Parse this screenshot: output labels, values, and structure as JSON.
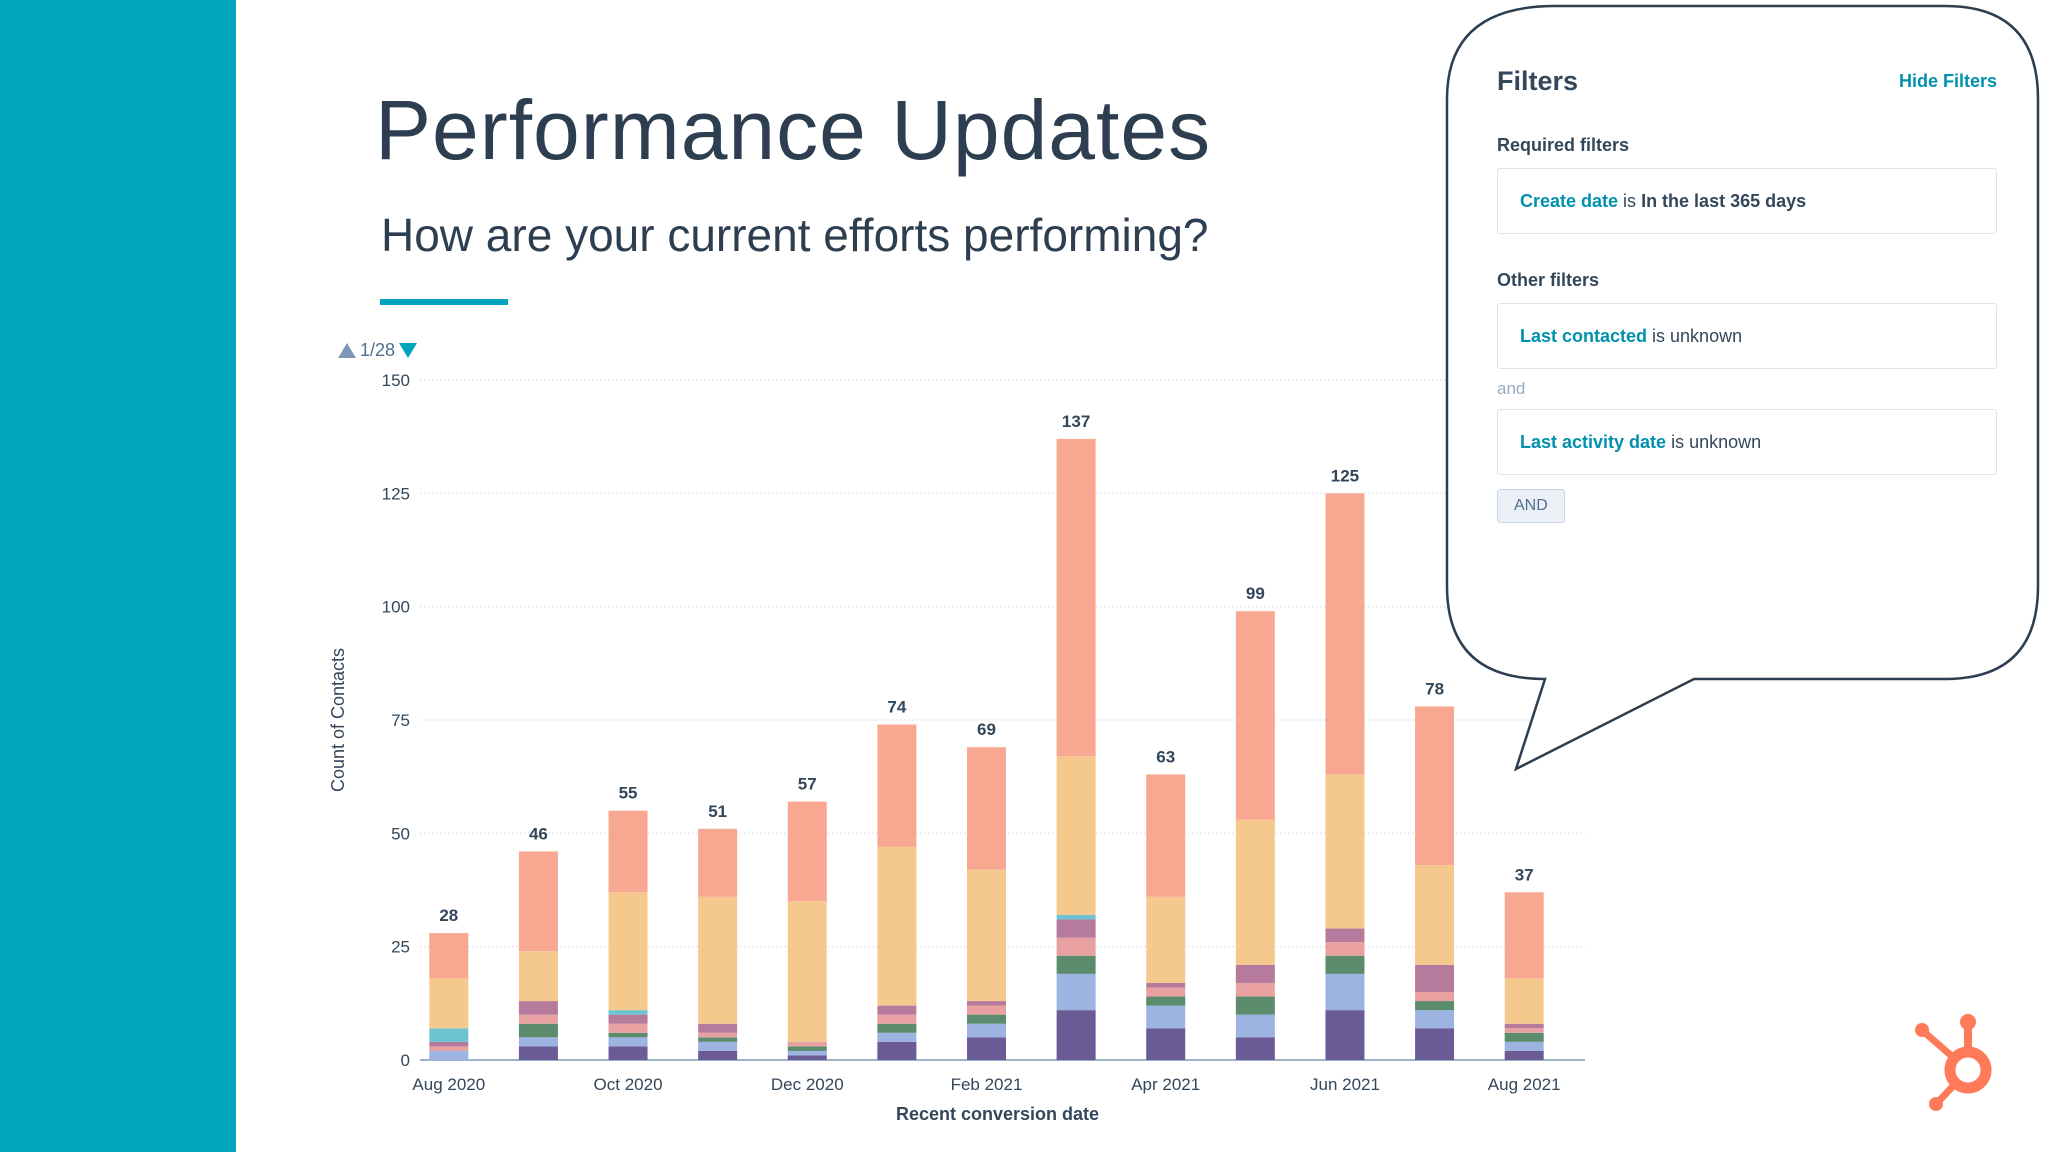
{
  "slide": {
    "title": "Performance Updates",
    "subtitle": "How are your current efforts performing?",
    "accent_color": "#00a4bd"
  },
  "pager": {
    "label": "1/28"
  },
  "filters": {
    "title": "Filters",
    "hide_label": "Hide Filters",
    "required_label": "Required filters",
    "required": {
      "property": "Create date",
      "operator": " is ",
      "value": "In the last 365 days"
    },
    "other_label": "Other filters",
    "other": [
      {
        "property": "Last contacted",
        "operator": " is unknown"
      },
      {
        "property": "Last activity date",
        "operator": " is unknown"
      }
    ],
    "and_text": "and",
    "and_button": "AND"
  },
  "logo": {
    "icon": "hubspot-sprocket-icon",
    "color": "#ff7a59"
  },
  "chart_data": {
    "type": "bar",
    "stacked": true,
    "xlabel": "Recent conversion date",
    "ylabel": "Count of Contacts",
    "ylim": [
      0,
      150
    ],
    "yticks": [
      0,
      25,
      50,
      75,
      100,
      125,
      150
    ],
    "grid": true,
    "categories": [
      "Aug 2020",
      "Sep 2020",
      "Oct 2020",
      "Nov 2020",
      "Dec 2020",
      "Jan 2021",
      "Feb 2021",
      "Mar 2021",
      "Apr 2021",
      "May 2021",
      "Jun 2021",
      "Jul 2021",
      "Aug 2021"
    ],
    "tick_labels": [
      "Aug 2020",
      "",
      "Oct 2020",
      "",
      "Dec 2020",
      "",
      "Feb 2021",
      "",
      "Apr 2021",
      "",
      "Jun 2021",
      "",
      "Aug 2021"
    ],
    "totals": [
      28,
      46,
      55,
      51,
      57,
      74,
      69,
      137,
      63,
      99,
      125,
      78,
      37
    ],
    "series": [
      {
        "color": "#f8a891",
        "values": [
          10,
          22,
          18,
          15,
          22,
          27,
          27,
          70,
          27,
          46,
          62,
          35,
          19
        ]
      },
      {
        "color": "#f5c98e",
        "values": [
          11,
          11,
          26,
          28,
          31,
          35,
          29,
          35,
          19,
          32,
          34,
          22,
          10
        ]
      },
      {
        "color": "#6ec3d1",
        "values": [
          3,
          0,
          1,
          0,
          0,
          0,
          0,
          1,
          0,
          0,
          0,
          0,
          0
        ]
      },
      {
        "color": "#b57a9c",
        "values": [
          1,
          3,
          2,
          2,
          0,
          2,
          1,
          4,
          1,
          4,
          3,
          6,
          1
        ]
      },
      {
        "color": "#e8a0a0",
        "values": [
          1,
          2,
          2,
          1,
          1,
          2,
          2,
          4,
          2,
          3,
          3,
          2,
          1
        ]
      },
      {
        "color": "#5b8c6e",
        "values": [
          0,
          3,
          1,
          1,
          1,
          2,
          2,
          4,
          2,
          4,
          4,
          2,
          2
        ]
      },
      {
        "color": "#9db3e0",
        "values": [
          2,
          2,
          2,
          2,
          1,
          2,
          3,
          8,
          5,
          5,
          8,
          4,
          2
        ]
      },
      {
        "color": "#6b5b95",
        "values": [
          0,
          3,
          3,
          2,
          1,
          4,
          5,
          11,
          7,
          5,
          11,
          7,
          2
        ]
      }
    ]
  }
}
